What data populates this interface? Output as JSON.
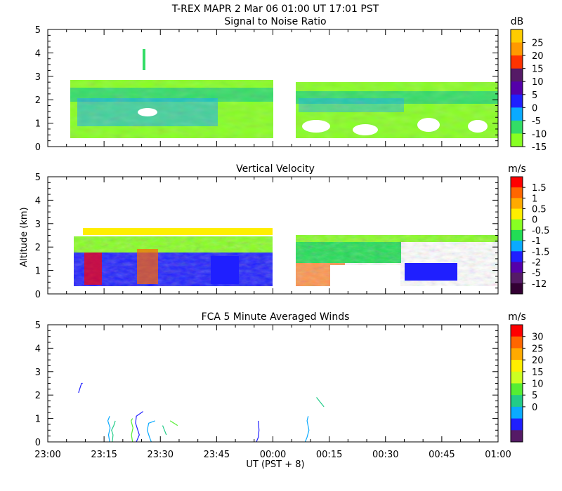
{
  "header": {
    "title": "T-REX   MAPR   2 Mar 06   01:00 UT   17:01   PST"
  },
  "shared": {
    "y_axis_label": "Altitude  (km)",
    "x_axis_label": "UT  (PST + 8)",
    "x_ticks": [
      "23:00",
      "23:15",
      "23:30",
      "23:45",
      "00:00",
      "00:15",
      "00:30",
      "00:45",
      "01:00"
    ],
    "y_ticks": [
      "0",
      "1",
      "2",
      "3",
      "4",
      "5"
    ],
    "ylim": [
      0,
      5
    ]
  },
  "panels": [
    {
      "key": "snr",
      "title": "Signal to Noise Ratio",
      "unit": "dB",
      "colorbar_labels": [
        "25",
        "20",
        "15",
        "10",
        "5",
        "0",
        "-5",
        "-10",
        "-15"
      ],
      "colorbar_colors": [
        "#ffcc00",
        "#ff9900",
        "#ff3300",
        "#551a66",
        "#5500aa",
        "#1f1fff",
        "#0aaaff",
        "#33dd66",
        "#88ff22"
      ]
    },
    {
      "key": "velocity",
      "title": "Vertical Velocity",
      "unit": "m/s",
      "colorbar_labels": [
        "1.5",
        "1",
        "0.5",
        "0",
        "-0.5",
        "-1",
        "-1.5",
        "-2",
        "-5",
        "-12"
      ],
      "colorbar_colors": [
        "#ff0000",
        "#ff6600",
        "#ffaa00",
        "#ffee00",
        "#88ff22",
        "#22dd55",
        "#0aaaff",
        "#1f1fff",
        "#5500aa",
        "#551a66",
        "#330033"
      ]
    },
    {
      "key": "winds",
      "title": "FCA 5 Minute Averaged Winds",
      "unit": "m/s",
      "colorbar_labels": [
        "30",
        "25",
        "20",
        "15",
        "10",
        "5",
        "0"
      ],
      "colorbar_colors": [
        "#ff0000",
        "#ff6600",
        "#ffaa00",
        "#ffee00",
        "#ccff22",
        "#55ee33",
        "#22cc88",
        "#0aaaff",
        "#1f1fff",
        "#551a66"
      ]
    }
  ],
  "chart_data": [
    {
      "type": "heatmap",
      "title": "Signal to Noise Ratio",
      "colorbar_unit": "dB",
      "xlabel": "UT  (PST + 8)",
      "ylabel": "Altitude  (km)",
      "ylim": [
        0,
        5
      ],
      "segments": [
        {
          "start_min": 6,
          "end_min": 59,
          "alt_min_km": 0.4,
          "alt_max_km": 2.8,
          "dominant": "-15 to -10 dB",
          "bright_band_km": [
            1.0,
            2.6
          ]
        },
        {
          "start_min": 65,
          "end_min": 120,
          "alt_min_km": 0.4,
          "alt_max_km": 2.7,
          "dominant": "-15 to -10 dB",
          "bright_band_km": [
            1.7,
            2.4
          ]
        }
      ],
      "note": "Sparse returns above 3 km; data gap near 00:00 UT"
    },
    {
      "type": "heatmap",
      "title": "Vertical Velocity",
      "colorbar_unit": "m/s",
      "xlabel": "UT  (PST + 8)",
      "ylabel": "Altitude  (km)",
      "ylim": [
        0,
        5
      ],
      "segments": [
        {
          "start_min": 6,
          "end_min": 59,
          "alt_min_km": 0.3,
          "alt_max_km": 2.8,
          "range": "-5 to 1.5 m/s"
        },
        {
          "start_min": 65,
          "end_min": 120,
          "alt_min_km": 0.3,
          "alt_max_km": 2.6,
          "range": "-5 to 1 m/s"
        }
      ]
    },
    {
      "type": "line",
      "title": "FCA 5 Minute Averaged Winds",
      "colorbar_unit": "m/s",
      "xlabel": "UT  (PST + 8)",
      "ylabel": "Altitude  (km)",
      "ylim": [
        0,
        5
      ],
      "xlim_minutes_from_2300": [
        0,
        120
      ],
      "profiles": [
        {
          "time": "23:08",
          "points": [
            [
              8.2,
              2.1
            ],
            [
              8.6,
              2.3
            ],
            [
              9.0,
              2.5
            ],
            [
              9.3,
              2.5
            ]
          ]
        },
        {
          "time": "23:15",
          "points": [
            [
              16.5,
              0.0
            ],
            [
              16.2,
              0.3
            ],
            [
              16.6,
              0.6
            ],
            [
              16.0,
              0.9
            ],
            [
              16.5,
              1.1
            ]
          ]
        },
        {
          "time": "23:16",
          "points": [
            [
              17.2,
              0.0
            ],
            [
              17.4,
              0.3
            ],
            [
              17.0,
              0.5
            ],
            [
              17.6,
              0.7
            ],
            [
              18.0,
              0.9
            ]
          ]
        },
        {
          "time": "23:20",
          "points": [
            [
              22.6,
              0.0
            ],
            [
              22.3,
              0.3
            ],
            [
              22.7,
              0.6
            ],
            [
              22.2,
              0.9
            ],
            [
              22.6,
              1.0
            ]
          ]
        },
        {
          "time": "23:21",
          "points": [
            [
              23.6,
              0.0
            ],
            [
              24.4,
              0.3
            ],
            [
              24.0,
              0.5
            ],
            [
              23.4,
              0.8
            ],
            [
              23.6,
              1.1
            ],
            [
              25.4,
              1.3
            ]
          ]
        },
        {
          "time": "23:25",
          "points": [
            [
              27.6,
              0.0
            ],
            [
              27.1,
              0.2
            ],
            [
              26.5,
              0.5
            ],
            [
              26.9,
              0.8
            ],
            [
              28.6,
              0.9
            ]
          ]
        },
        {
          "time": "23:30",
          "points": [
            [
              31.6,
              0.3
            ],
            [
              31.1,
              0.5
            ],
            [
              30.6,
              0.7
            ]
          ]
        },
        {
          "time": "23:33",
          "points": [
            [
              32.6,
              0.9
            ],
            [
              33.6,
              0.8
            ],
            [
              34.6,
              0.7
            ]
          ]
        },
        {
          "time": "23:55",
          "points": [
            [
              55.6,
              0.0
            ],
            [
              56.1,
              0.2
            ],
            [
              56.3,
              0.5
            ],
            [
              56.1,
              0.9
            ]
          ]
        },
        {
          "time": "00:07",
          "points": [
            [
              68.6,
              0.0
            ],
            [
              69.1,
              0.2
            ],
            [
              69.6,
              0.5
            ],
            [
              69.1,
              0.9
            ],
            [
              69.4,
              1.1
            ]
          ]
        },
        {
          "time": "00:12",
          "points": [
            [
              71.6,
              1.9
            ],
            [
              72.6,
              1.7
            ],
            [
              73.6,
              1.5
            ]
          ]
        }
      ]
    }
  ]
}
